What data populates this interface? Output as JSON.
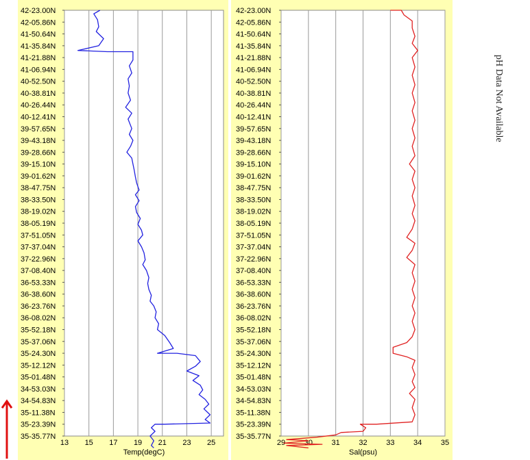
{
  "note": "pH Data Not Available",
  "colors": {
    "temp_line": "#2020e0",
    "sal_line": "#e02020",
    "panel_bg": "#ffffb3",
    "grid": "#999999",
    "arrow": "#e01010"
  },
  "chart_data": [
    {
      "type": "line",
      "orientation": "vertical-profile",
      "xlabel": "Temp(degC)",
      "ylabel": "",
      "xlim": [
        13,
        26
      ],
      "x_ticks": [
        13,
        15,
        17,
        19,
        21,
        23,
        25
      ],
      "y_tick_labels": [
        "42-23.00N",
        "42-05.86N",
        "41-50.64N",
        "41-35.84N",
        "41-21.88N",
        "41-06.94N",
        "40-52.50N",
        "40-38.81N",
        "40-26.44N",
        "40-12.41N",
        "39-57.65N",
        "39-43.18N",
        "39-28.66N",
        "39-15.10N",
        "39-01.62N",
        "38-47.75N",
        "38-33.50N",
        "38-19.02N",
        "38-05.19N",
        "37-51.05N",
        "37-37.04N",
        "37-22.96N",
        "37-08.40N",
        "36-53.33N",
        "36-38.60N",
        "36-23.76N",
        "36-08.02N",
        "35-52.18N",
        "35-37.06N",
        "35-24.30N",
        "35-12.12N",
        "35-01.48N",
        "34-53.03N",
        "34-54.83N",
        "35-11.38N",
        "35-23.39N",
        "35-35.77N"
      ],
      "grid": true,
      "series": [
        {
          "values": [
            [
              15.9,
              0
            ],
            [
              15.4,
              0.3
            ],
            [
              15.7,
              0.8
            ],
            [
              15.8,
              1.4
            ],
            [
              15.6,
              1.8
            ],
            [
              16.2,
              2.4
            ],
            [
              15.8,
              3.0
            ],
            [
              14.1,
              3.4
            ],
            [
              16.5,
              3.5
            ],
            [
              18.6,
              3.5
            ],
            [
              18.6,
              4.2
            ],
            [
              18.3,
              4.7
            ],
            [
              18.5,
              5.3
            ],
            [
              18.2,
              5.8
            ],
            [
              18.3,
              6.4
            ],
            [
              18.2,
              7.0
            ],
            [
              18.4,
              7.6
            ],
            [
              18.0,
              8.2
            ],
            [
              18.5,
              8.7
            ],
            [
              18.2,
              9.2
            ],
            [
              18.5,
              10.0
            ],
            [
              18.3,
              10.5
            ],
            [
              18.6,
              11.0
            ],
            [
              18.4,
              11.5
            ],
            [
              18.1,
              12.0
            ],
            [
              18.5,
              12.5
            ],
            [
              18.6,
              13.0
            ],
            [
              18.7,
              13.5
            ],
            [
              18.8,
              14.1
            ],
            [
              18.9,
              14.6
            ],
            [
              19.1,
              15.2
            ],
            [
              18.8,
              15.6
            ],
            [
              19.1,
              16.1
            ],
            [
              18.8,
              16.6
            ],
            [
              18.9,
              17.1
            ],
            [
              19.2,
              17.6
            ],
            [
              19.0,
              18.1
            ],
            [
              19.3,
              18.6
            ],
            [
              19.4,
              19.0
            ],
            [
              19.0,
              19.5
            ],
            [
              19.3,
              20.0
            ],
            [
              19.5,
              20.5
            ],
            [
              19.6,
              21.1
            ],
            [
              19.4,
              21.5
            ],
            [
              19.7,
              22.0
            ],
            [
              19.9,
              22.6
            ],
            [
              19.8,
              23.1
            ],
            [
              19.9,
              23.6
            ],
            [
              20.1,
              24.1
            ],
            [
              20.0,
              24.6
            ],
            [
              20.3,
              25.0
            ],
            [
              20.5,
              25.5
            ],
            [
              20.4,
              26.0
            ],
            [
              20.7,
              26.5
            ],
            [
              20.6,
              27.0
            ],
            [
              21.2,
              27.5
            ],
            [
              21.6,
              28.1
            ],
            [
              21.9,
              28.6
            ],
            [
              20.6,
              29.0
            ],
            [
              22.2,
              29.0
            ],
            [
              23.7,
              29.2
            ],
            [
              24.1,
              29.7
            ],
            [
              23.7,
              30.1
            ],
            [
              23.0,
              30.5
            ],
            [
              24.0,
              30.9
            ],
            [
              23.5,
              31.3
            ],
            [
              24.1,
              31.7
            ],
            [
              24.3,
              32.1
            ],
            [
              24.0,
              32.5
            ],
            [
              24.5,
              32.9
            ],
            [
              24.8,
              33.3
            ],
            [
              24.4,
              33.7
            ],
            [
              24.9,
              34.2
            ],
            [
              24.5,
              34.6
            ],
            [
              24.9,
              34.9
            ],
            [
              21.2,
              35.0
            ],
            [
              20.4,
              35.0
            ],
            [
              20.1,
              35.3
            ],
            [
              20.4,
              35.6
            ],
            [
              20.0,
              36.0
            ],
            [
              20.3,
              36.4
            ],
            [
              20.1,
              36.8
            ],
            [
              20.3,
              37.0
            ]
          ]
        }
      ]
    },
    {
      "type": "line",
      "orientation": "vertical-profile",
      "xlabel": "Sal(psu)",
      "ylabel": "",
      "xlim": [
        29,
        35
      ],
      "x_ticks": [
        29,
        30,
        31,
        32,
        33,
        34,
        35
      ],
      "y_tick_labels": [
        "42-23.00N",
        "42-05.86N",
        "41-50.64N",
        "41-35.84N",
        "41-21.88N",
        "41-06.94N",
        "40-52.50N",
        "40-38.81N",
        "40-26.44N",
        "40-12.41N",
        "39-57.65N",
        "39-43.18N",
        "39-28.66N",
        "39-15.10N",
        "39-01.62N",
        "38-47.75N",
        "38-33.50N",
        "38-19.02N",
        "38-05.19N",
        "37-51.05N",
        "37-37.04N",
        "37-22.96N",
        "37-08.40N",
        "36-53.33N",
        "36-38.60N",
        "36-23.76N",
        "36-08.02N",
        "35-52.18N",
        "35-37.06N",
        "35-24.30N",
        "35-12.12N",
        "35-01.48N",
        "34-53.03N",
        "34-54.83N",
        "35-11.38N",
        "35-23.39N",
        "35-35.77N"
      ],
      "grid": true,
      "series": [
        {
          "values": [
            [
              33.0,
              0
            ],
            [
              33.4,
              0
            ],
            [
              33.5,
              0.4
            ],
            [
              33.8,
              0.9
            ],
            [
              33.8,
              1.5
            ],
            [
              33.9,
              2.2
            ],
            [
              33.8,
              2.8
            ],
            [
              34.0,
              3.4
            ],
            [
              33.8,
              4.0
            ],
            [
              33.9,
              4.8
            ],
            [
              33.8,
              5.5
            ],
            [
              33.9,
              6.3
            ],
            [
              33.8,
              7.0
            ],
            [
              33.9,
              7.8
            ],
            [
              33.8,
              8.5
            ],
            [
              33.9,
              9.3
            ],
            [
              33.8,
              10.0
            ],
            [
              33.9,
              10.8
            ],
            [
              33.8,
              11.5
            ],
            [
              33.9,
              12.3
            ],
            [
              33.7,
              13.0
            ],
            [
              33.9,
              13.6
            ],
            [
              33.8,
              14.3
            ],
            [
              33.9,
              15.0
            ],
            [
              33.8,
              15.7
            ],
            [
              33.9,
              16.5
            ],
            [
              33.8,
              17.2
            ],
            [
              33.9,
              17.8
            ],
            [
              33.8,
              18.5
            ],
            [
              33.6,
              19.2
            ],
            [
              33.9,
              19.7
            ],
            [
              33.8,
              20.3
            ],
            [
              33.6,
              20.9
            ],
            [
              33.9,
              21.5
            ],
            [
              33.8,
              22.2
            ],
            [
              33.9,
              22.9
            ],
            [
              33.8,
              23.6
            ],
            [
              33.9,
              24.3
            ],
            [
              33.8,
              25.0
            ],
            [
              33.9,
              25.6
            ],
            [
              33.8,
              26.3
            ],
            [
              33.9,
              27.0
            ],
            [
              33.8,
              27.6
            ],
            [
              33.6,
              28.1
            ],
            [
              33.1,
              28.5
            ],
            [
              33.1,
              29.0
            ],
            [
              33.6,
              29.3
            ],
            [
              33.9,
              29.6
            ],
            [
              33.8,
              30.2
            ],
            [
              33.9,
              30.8
            ],
            [
              33.8,
              31.4
            ],
            [
              33.9,
              31.9
            ],
            [
              33.7,
              32.4
            ],
            [
              33.9,
              32.9
            ],
            [
              33.8,
              33.6
            ],
            [
              33.9,
              34.2
            ],
            [
              33.8,
              34.8
            ],
            [
              32.5,
              35.0
            ],
            [
              31.9,
              35.0
            ],
            [
              32.1,
              35.3
            ],
            [
              32.0,
              35.6
            ],
            [
              31.2,
              35.7
            ],
            [
              31.0,
              35.9
            ],
            [
              30.3,
              36.1
            ],
            [
              29.2,
              36.3
            ],
            [
              30.0,
              36.4
            ],
            [
              29.1,
              36.6
            ],
            [
              30.5,
              36.7
            ],
            [
              29.2,
              36.8
            ],
            [
              30.0,
              37.0
            ]
          ]
        }
      ]
    }
  ]
}
